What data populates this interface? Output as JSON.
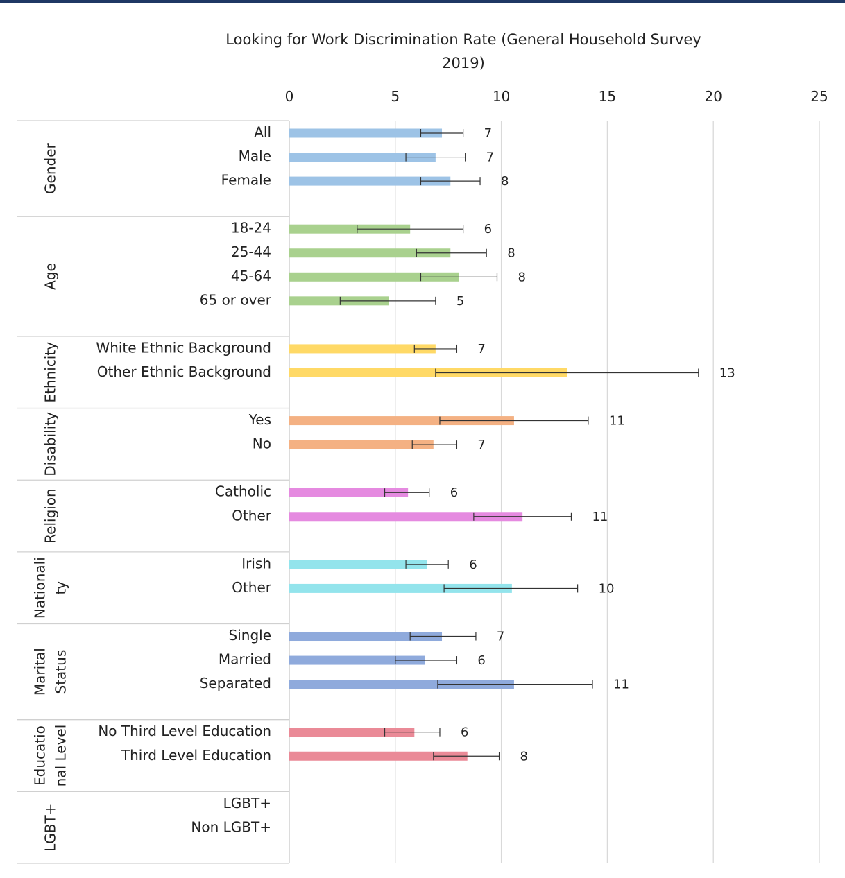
{
  "chart_data": {
    "type": "bar",
    "title": "Looking for Work Discrimination Rate (General Household Survey 2019)",
    "title_lines": [
      "Looking for Work Discrimination Rate (General Household Survey",
      "2019)"
    ],
    "x_ticks": [
      0,
      5,
      10,
      15,
      20,
      25
    ],
    "xlim": [
      0,
      25
    ],
    "grid": true,
    "orientation": "horizontal",
    "groups": [
      {
        "label_lines": [
          "Gender"
        ],
        "color": "#9dc3e6",
        "categories": [
          {
            "label": "All",
            "value": 7.2,
            "err_low": 6.2,
            "err_high": 8.2,
            "data_label": "7"
          },
          {
            "label": "Male",
            "value": 6.9,
            "err_low": 5.5,
            "err_high": 8.3,
            "data_label": "7"
          },
          {
            "label": "Female",
            "value": 7.6,
            "err_low": 6.2,
            "err_high": 9.0,
            "data_label": "8"
          }
        ]
      },
      {
        "label_lines": [
          "Age"
        ],
        "color": "#a9d18e",
        "categories": [
          {
            "label": "18-24",
            "value": 5.7,
            "err_low": 3.2,
            "err_high": 8.2,
            "data_label": "6"
          },
          {
            "label": "25-44",
            "value": 7.6,
            "err_low": 6.0,
            "err_high": 9.3,
            "data_label": "8"
          },
          {
            "label": "45-64",
            "value": 8.0,
            "err_low": 6.2,
            "err_high": 9.8,
            "data_label": "8"
          },
          {
            "label": "65 or over",
            "value": 4.7,
            "err_low": 2.4,
            "err_high": 6.9,
            "data_label": "5"
          }
        ]
      },
      {
        "label_lines": [
          "Ethnicity"
        ],
        "color": "#ffd966",
        "categories": [
          {
            "label": "White Ethnic Background",
            "value": 6.9,
            "err_low": 5.9,
            "err_high": 7.9,
            "data_label": "7"
          },
          {
            "label": "Other Ethnic Background",
            "value": 13.1,
            "err_low": 6.9,
            "err_high": 19.3,
            "data_label": "13"
          }
        ]
      },
      {
        "label_lines": [
          "Disability"
        ],
        "color": "#f4b183",
        "categories": [
          {
            "label": "Yes",
            "value": 10.6,
            "err_low": 7.1,
            "err_high": 14.1,
            "data_label": "11"
          },
          {
            "label": "No",
            "value": 6.8,
            "err_low": 5.8,
            "err_high": 7.9,
            "data_label": "7"
          }
        ]
      },
      {
        "label_lines": [
          "Religion"
        ],
        "color": "#e58ae0",
        "categories": [
          {
            "label": "Catholic",
            "value": 5.6,
            "err_low": 4.5,
            "err_high": 6.6,
            "data_label": "6"
          },
          {
            "label": "Other",
            "value": 11.0,
            "err_low": 8.7,
            "err_high": 13.3,
            "data_label": "11"
          }
        ]
      },
      {
        "label_lines": [
          "Nationali",
          "ty"
        ],
        "color": "#93e4ec",
        "categories": [
          {
            "label": "Irish",
            "value": 6.5,
            "err_low": 5.5,
            "err_high": 7.5,
            "data_label": "6"
          },
          {
            "label": "Other",
            "value": 10.5,
            "err_low": 7.3,
            "err_high": 13.6,
            "data_label": "10"
          }
        ]
      },
      {
        "label_lines": [
          "Marital",
          "Status"
        ],
        "color": "#8faadc",
        "categories": [
          {
            "label": "Single",
            "value": 7.2,
            "err_low": 5.7,
            "err_high": 8.8,
            "data_label": "7"
          },
          {
            "label": "Married",
            "value": 6.4,
            "err_low": 5.0,
            "err_high": 7.9,
            "data_label": "6"
          },
          {
            "label": "Separated",
            "value": 10.6,
            "err_low": 7.0,
            "err_high": 14.3,
            "data_label": "11"
          }
        ]
      },
      {
        "label_lines": [
          "Educatio",
          "nal Level"
        ],
        "color": "#ea8a97",
        "categories": [
          {
            "label": "No Third Level Education",
            "value": 5.9,
            "err_low": 4.5,
            "err_high": 7.1,
            "data_label": "6"
          },
          {
            "label": "Third Level Education",
            "value": 8.4,
            "err_low": 6.8,
            "err_high": 9.9,
            "data_label": "8"
          }
        ]
      },
      {
        "label_lines": [
          "LGBT+"
        ],
        "color": "#c9c9c9",
        "categories": [
          {
            "label": "LGBT+",
            "value": null,
            "err_low": null,
            "err_high": null,
            "data_label": ""
          },
          {
            "label": "Non LGBT+",
            "value": null,
            "err_low": null,
            "err_high": null,
            "data_label": ""
          }
        ]
      }
    ]
  }
}
